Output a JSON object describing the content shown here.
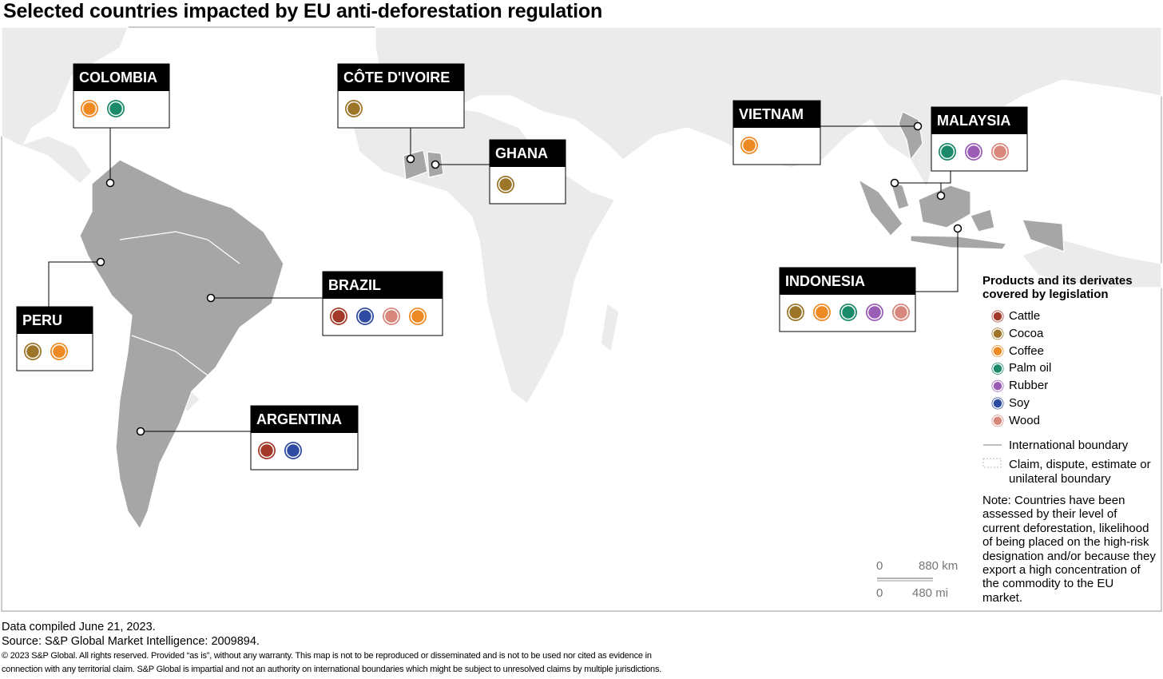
{
  "title": "Selected countries impacted by EU anti-deforestation regulation",
  "products": [
    {
      "name": "Cattle",
      "color": "#a3392a"
    },
    {
      "name": "Cocoa",
      "color": "#9c7529"
    },
    {
      "name": "Coffee",
      "color": "#ee8a24"
    },
    {
      "name": "Palm oil",
      "color": "#1b8a6b"
    },
    {
      "name": "Rubber",
      "color": "#9b5cb6"
    },
    {
      "name": "Soy",
      "color": "#2d4ba1"
    },
    {
      "name": "Wood",
      "color": "#d8877c"
    }
  ],
  "countries": [
    {
      "name": "COLOMBIA",
      "products": [
        "Coffee",
        "Palm oil"
      ]
    },
    {
      "name": "CÔTE D'IVOIRE",
      "products": [
        "Cocoa"
      ]
    },
    {
      "name": "GHANA",
      "products": [
        "Cocoa"
      ]
    },
    {
      "name": "VIETNAM",
      "products": [
        "Coffee"
      ]
    },
    {
      "name": "MALAYSIA",
      "products": [
        "Palm oil",
        "Rubber",
        "Wood"
      ]
    },
    {
      "name": "PERU",
      "products": [
        "Cocoa",
        "Coffee"
      ]
    },
    {
      "name": "BRAZIL",
      "products": [
        "Cattle",
        "Soy",
        "Wood",
        "Coffee"
      ]
    },
    {
      "name": "INDONESIA",
      "products": [
        "Cocoa",
        "Coffee",
        "Palm oil",
        "Rubber",
        "Wood"
      ]
    },
    {
      "name": "ARGENTINA",
      "products": [
        "Cattle",
        "Soy"
      ]
    }
  ],
  "legend": {
    "title": "Products and its derivates covered by legislation",
    "boundaries": [
      "International boundary",
      "Claim, dispute, estimate or unilateral boundary"
    ],
    "note": "Note: Countries have been assessed by their level of current deforestation, likelihood of being placed on the high-risk designation and/or because they export a high concentration of the commodity to the EU market."
  },
  "scale": {
    "km": [
      "0",
      "880 km"
    ],
    "mi": [
      "0",
      "480 mi"
    ]
  },
  "footer": {
    "compiled": "Data compiled June 21, 2023.",
    "source": "Source: S&P Global Market Intelligence: 2009894.",
    "disclaimer": [
      "© 2023 S&P Global. All rights reserved. Provided “as is”, without any warranty. This map is not to be reproduced or disseminated and is not to be used nor cited as evidence in",
      "connection with any territorial claim. S&P Global is impartial and not an authority on international boundaries which might be subject to unresolved claims by multiple jurisdictions."
    ]
  }
}
